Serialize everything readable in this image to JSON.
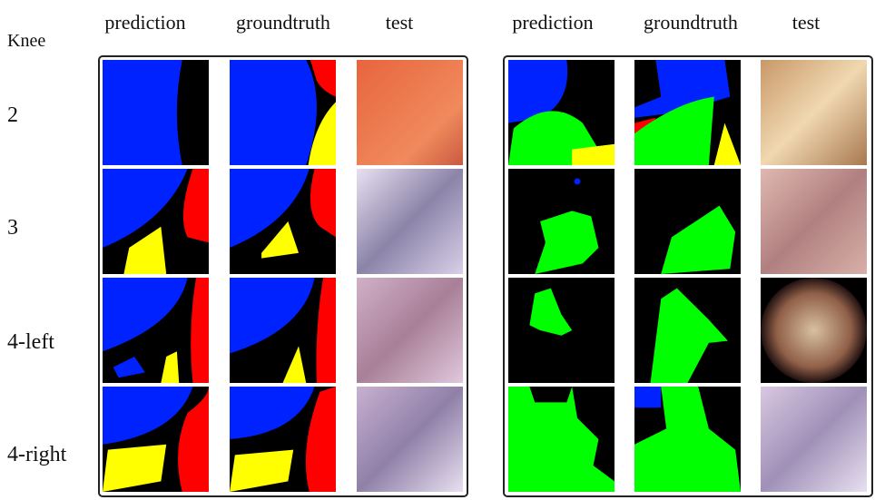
{
  "row_header": "Knee",
  "rows": [
    "2",
    "3",
    "4-left",
    "4-right"
  ],
  "panels": [
    {
      "headers": [
        "prediction",
        "groundtruth",
        "test"
      ]
    },
    {
      "headers": [
        "prediction",
        "groundtruth",
        "test"
      ]
    }
  ]
}
